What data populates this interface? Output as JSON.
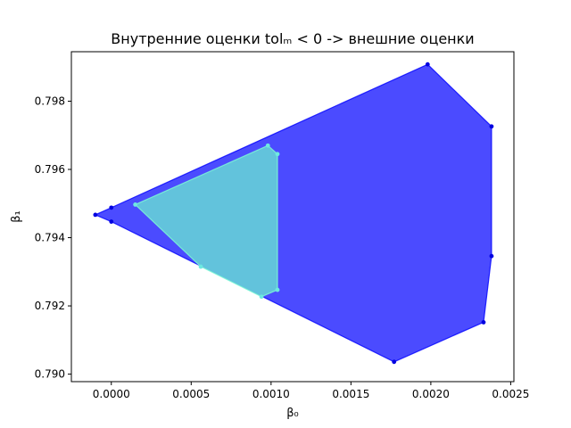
{
  "chart_data": {
    "type": "area",
    "title": "Внутренние оценки tolₘ < 0 -> внешние оценки",
    "xlabel": "β₀",
    "ylabel": "β₁",
    "xlim": [
      -0.00025,
      0.00252
    ],
    "ylim": [
      0.78978,
      0.79945
    ],
    "xticks": [
      {
        "value": 0.0,
        "label": "0.0000"
      },
      {
        "value": 0.0005,
        "label": "0.0005"
      },
      {
        "value": 0.001,
        "label": "0.0010"
      },
      {
        "value": 0.0015,
        "label": "0.0015"
      },
      {
        "value": 0.002,
        "label": "0.0020"
      },
      {
        "value": 0.0025,
        "label": "0.0025"
      }
    ],
    "yticks": [
      {
        "value": 0.79,
        "label": "0.790"
      },
      {
        "value": 0.792,
        "label": "0.792"
      },
      {
        "value": 0.794,
        "label": "0.794"
      },
      {
        "value": 0.796,
        "label": "0.796"
      },
      {
        "value": 0.798,
        "label": "0.798"
      }
    ],
    "grid": false,
    "series": [
      {
        "color": "#0000ff",
        "fill_color": "#4b4bff",
        "marker_color": "#0000e0",
        "points": [
          [
            -0.0001,
            0.79467
          ],
          [
            0.0,
            0.79447
          ],
          [
            0.00177,
            0.79036
          ],
          [
            0.00233,
            0.79152
          ],
          [
            0.00238,
            0.79346
          ],
          [
            0.00238,
            0.79726
          ],
          [
            0.00198,
            0.79908
          ],
          [
            0.0,
            0.79488
          ]
        ]
      },
      {
        "color": "#7fffd4",
        "fill_color": "#62c3dc",
        "marker_color": "#6ee9e0",
        "points": [
          [
            0.00015,
            0.79497
          ],
          [
            0.00056,
            0.79315
          ],
          [
            0.00094,
            0.79227
          ],
          [
            0.00104,
            0.79247
          ],
          [
            0.00104,
            0.79645
          ],
          [
            0.00098,
            0.7967
          ]
        ]
      }
    ]
  }
}
